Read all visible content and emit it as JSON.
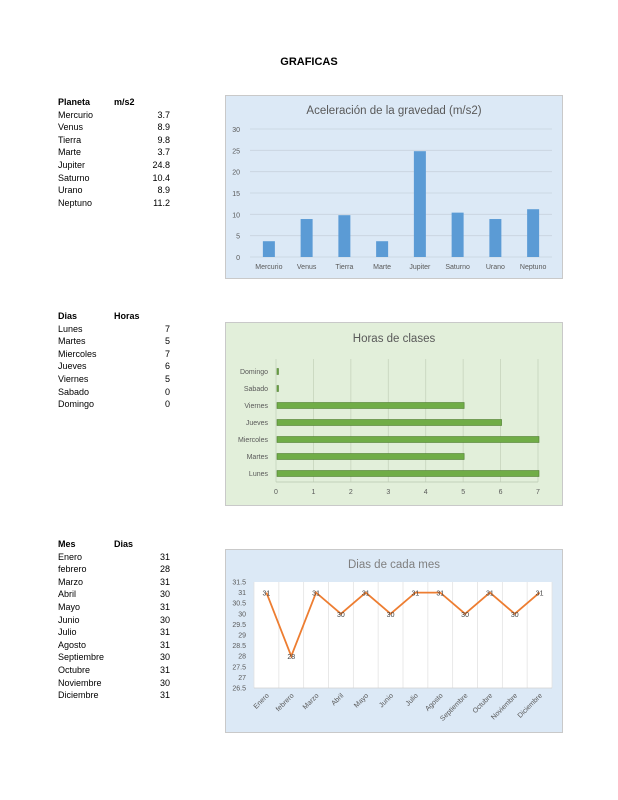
{
  "page_title": "GRAFICAS",
  "planet_table": {
    "headers": [
      "Planeta",
      "m/s2"
    ],
    "rows": [
      [
        "Mercurio",
        "3.7"
      ],
      [
        "Venus",
        "8.9"
      ],
      [
        "Tierra",
        "9.8"
      ],
      [
        "Marte",
        "3.7"
      ],
      [
        "Jupiter",
        "24.8"
      ],
      [
        "Saturno",
        "10.4"
      ],
      [
        "Urano",
        "8.9"
      ],
      [
        "Neptuno",
        "11.2"
      ]
    ]
  },
  "days_table": {
    "headers": [
      "Dias",
      "Horas"
    ],
    "rows": [
      [
        "Lunes",
        "7"
      ],
      [
        "Martes",
        "5"
      ],
      [
        "Miercoles",
        "7"
      ],
      [
        "Jueves",
        "6"
      ],
      [
        "Viernes",
        "5"
      ],
      [
        "Sabado",
        "0"
      ],
      [
        "Domingo",
        "0"
      ]
    ]
  },
  "months_table": {
    "headers": [
      "Mes",
      "Dias"
    ],
    "rows": [
      [
        "Enero",
        "31"
      ],
      [
        "febrero",
        "28"
      ],
      [
        "Marzo",
        "31"
      ],
      [
        "Abril",
        "30"
      ],
      [
        "Mayo",
        "31"
      ],
      [
        "Junio",
        "30"
      ],
      [
        "Julio",
        "31"
      ],
      [
        "Agosto",
        "31"
      ],
      [
        "Septiembre",
        "30"
      ],
      [
        "Octubre",
        "31"
      ],
      [
        "Noviembre",
        "30"
      ],
      [
        "Diciembre",
        "31"
      ]
    ]
  },
  "chart_data": [
    {
      "type": "bar",
      "title": "Aceleración de la gravedad (m/s2)",
      "categories": [
        "Mercurio",
        "Venus",
        "Tierra",
        "Marte",
        "Jupiter",
        "Saturno",
        "Urano",
        "Neptuno"
      ],
      "values": [
        3.7,
        8.9,
        9.8,
        3.7,
        24.8,
        10.4,
        8.9,
        11.2
      ],
      "ylim": [
        0,
        30
      ],
      "yticks": [
        0,
        5,
        10,
        15,
        20,
        25,
        30
      ],
      "grid": true,
      "bar_color": "#5b9bd5",
      "background": "#dce9f6"
    },
    {
      "type": "bar",
      "orientation": "horizontal",
      "title": "Horas de clases",
      "categories": [
        "Lunes",
        "Martes",
        "Miercoles",
        "Jueves",
        "Viernes",
        "Sabado",
        "Domingo"
      ],
      "values": [
        7,
        5,
        7,
        6,
        5,
        0,
        0
      ],
      "xlim": [
        0,
        7
      ],
      "xticks": [
        0,
        1,
        2,
        3,
        4,
        5,
        6,
        7
      ],
      "grid": true,
      "bar_color": "#70ad47",
      "background": "#e2efda"
    },
    {
      "type": "line",
      "title": "Dias de cada mes",
      "categories": [
        "Enero",
        "febrero",
        "Marzo",
        "Abril",
        "Mayo",
        "Junio",
        "Julio",
        "Agosto",
        "Septiembre",
        "Octubre",
        "Noviembre",
        "Diciembre"
      ],
      "values": [
        31,
        28,
        31,
        30,
        31,
        30,
        31,
        31,
        30,
        31,
        30,
        31
      ],
      "ylim": [
        26.5,
        31.5
      ],
      "yticks": [
        26.5,
        27,
        27.5,
        28,
        28.5,
        29,
        29.5,
        30,
        30.5,
        31,
        31.5
      ],
      "data_labels": true,
      "grid": true,
      "line_color": "#ed7d31",
      "background": "#dce9f6"
    }
  ]
}
